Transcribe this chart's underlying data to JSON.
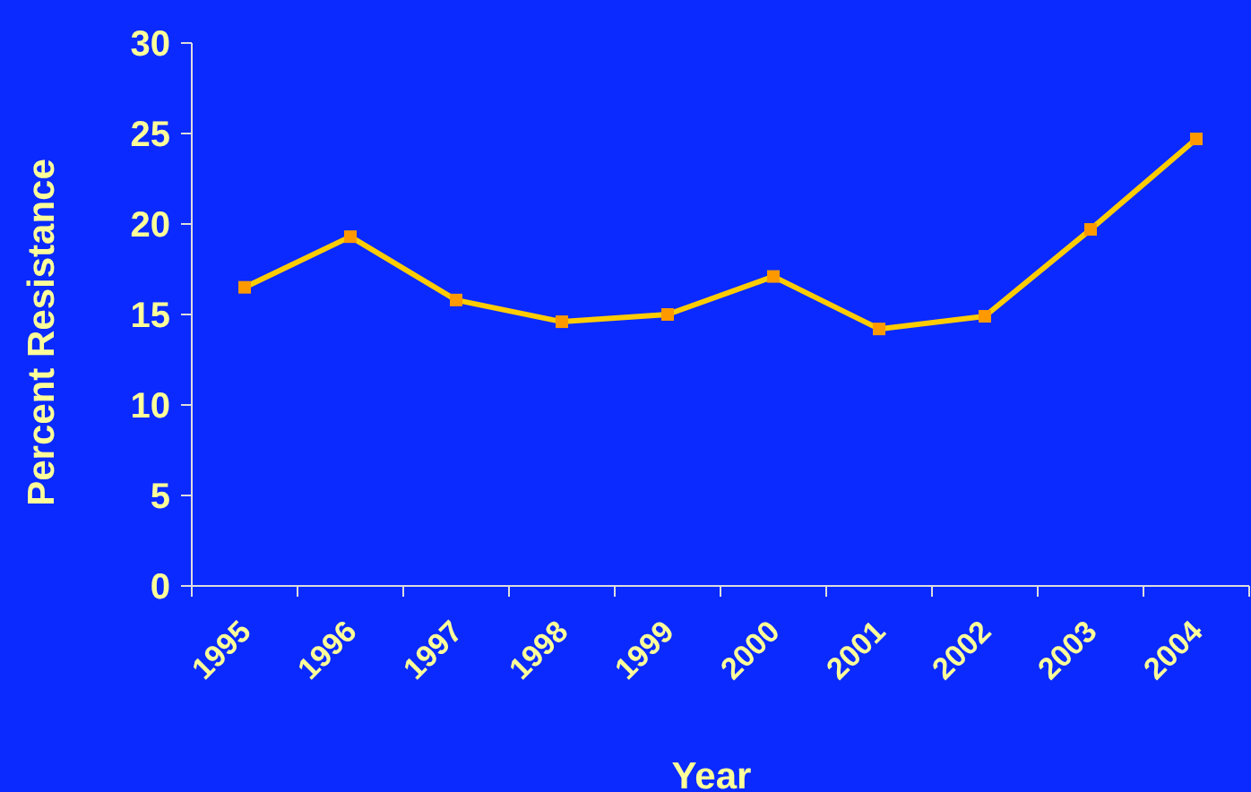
{
  "chart_data": {
    "type": "line",
    "xlabel": "Year",
    "ylabel": "Percent Resistance",
    "categories": [
      "1995",
      "1996",
      "1997",
      "1998",
      "1999",
      "2000",
      "2001",
      "2002",
      "2003",
      "2004"
    ],
    "series": [
      {
        "color": "#ffcc00",
        "values": [
          16.5,
          19.3,
          15.8,
          14.6,
          15.0,
          17.1,
          14.2,
          14.9,
          19.7,
          24.7
        ]
      }
    ],
    "ylim": [
      0,
      30
    ],
    "yticks": [
      0,
      5,
      10,
      15,
      20,
      25,
      30
    ],
    "marker": "square",
    "grid": false
  }
}
